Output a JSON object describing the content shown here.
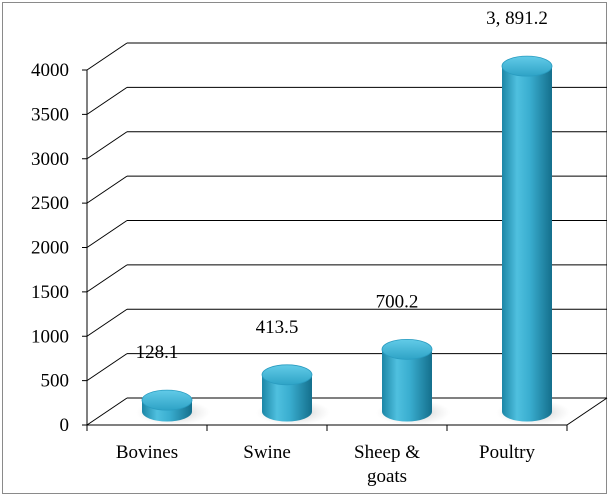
{
  "chart_data": {
    "type": "bar",
    "style": "3d-cylinder",
    "title": "",
    "xlabel": "",
    "ylabel": "",
    "categories": [
      "Bovines",
      "Swine",
      "Sheep &\ngoats",
      "Poultry"
    ],
    "values": [
      128.1,
      413.5,
      700.2,
      3891.2
    ],
    "data_labels": [
      "128.1",
      "413.5",
      "700.2",
      "3, 891.2"
    ],
    "ylim": [
      0,
      4000
    ],
    "yticks": [
      0,
      500,
      1000,
      1500,
      2000,
      2500,
      3000,
      3500,
      4000
    ],
    "ytick_labels": [
      "0",
      "500",
      "1000",
      "1500",
      "2000",
      "2500",
      "3000",
      "3500",
      "4000"
    ],
    "grid": true,
    "legend": "none",
    "colors": {
      "bar_top": "#3fb4d6",
      "bar_body_light": "#58c3e2",
      "bar_body_dark": "#1a7e9e",
      "grid": "#000000"
    }
  }
}
